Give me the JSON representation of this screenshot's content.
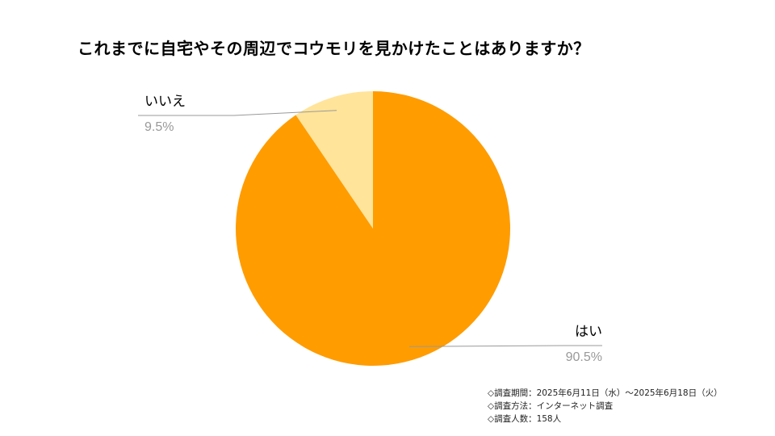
{
  "chart_data": {
    "type": "pie",
    "title": "これまでに自宅やその周辺でコウモリを見かけたことはありますか？",
    "slices": [
      {
        "label": "はい",
        "value": 90.5,
        "value_label": "90.5%",
        "color": "#FF9C00"
      },
      {
        "label": "いいえ",
        "value": 9.5,
        "value_label": "9.5%",
        "color": "#FFE49A"
      }
    ],
    "start_angle": "12 o'clock",
    "direction": "clockwise",
    "label_color": "#000000",
    "percent_color": "#999999",
    "leader_line_color": "#999999"
  },
  "footnotes": [
    "◇調査期間：2025年6月11日（水）〜2025年6月18日（火）",
    "◇調査方法：インターネット調査",
    "◇調査人数：158人"
  ]
}
